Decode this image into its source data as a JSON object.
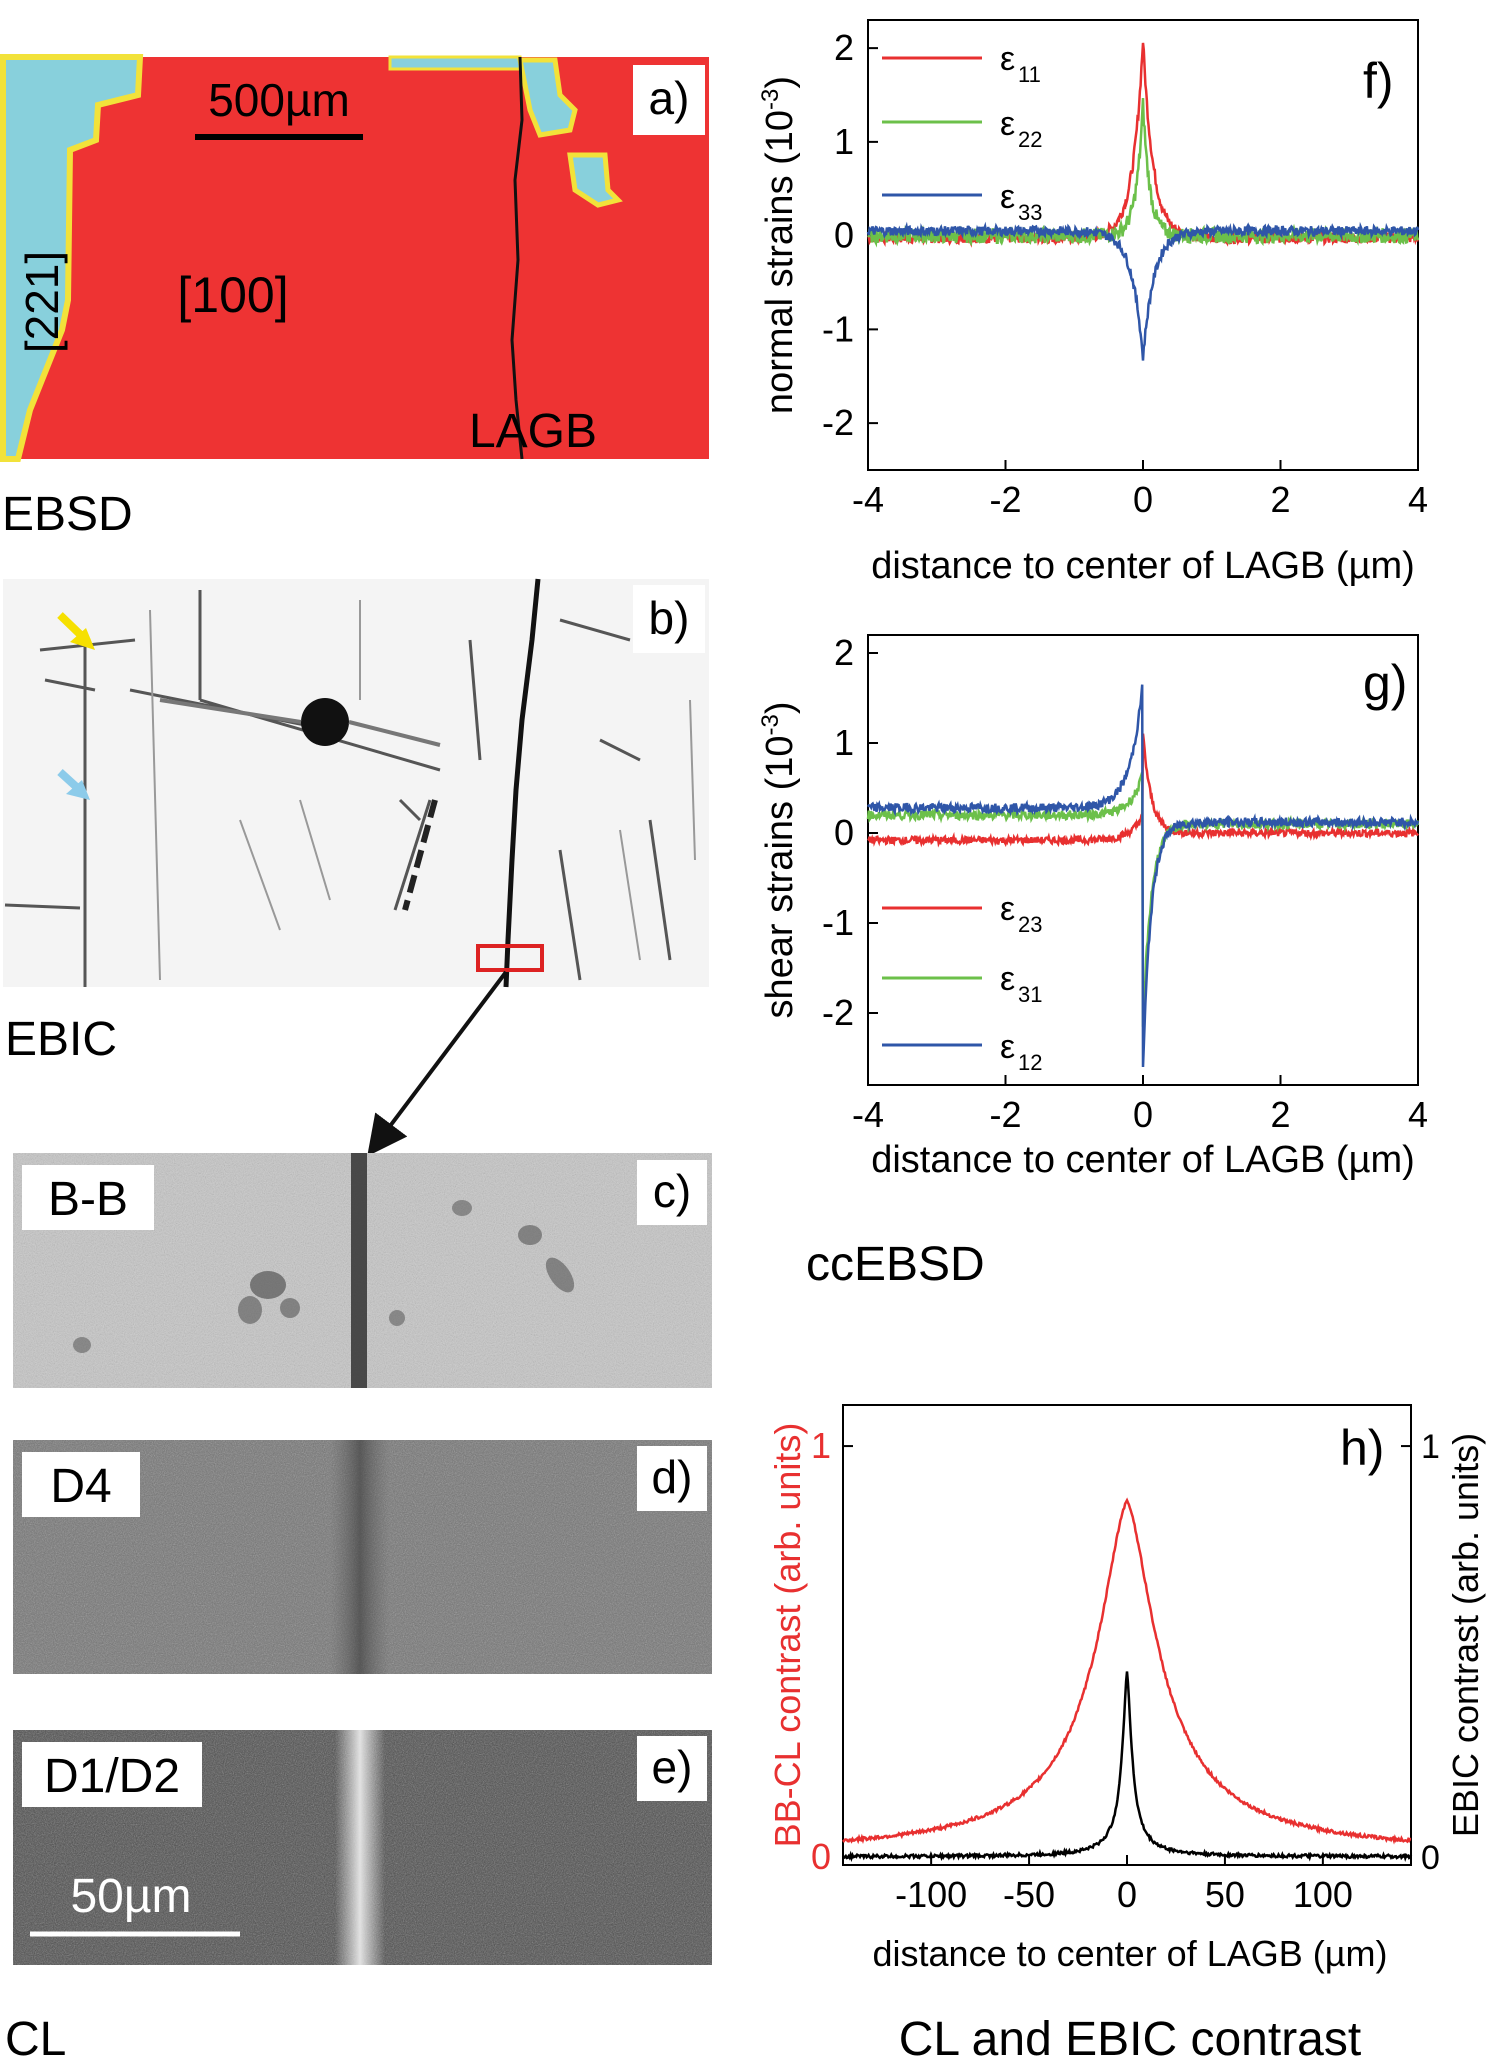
{
  "left_panels": {
    "a": {
      "tag": "a)",
      "scalebar": "500µm",
      "orientation_1": "[221]",
      "orientation_2": "[100]",
      "boundary": "LAGB",
      "caption": "EBSD",
      "colors": {
        "grain_100": "#ee3333",
        "grain_221": "#88d0dc",
        "boundary_outline": "#f2e23a"
      }
    },
    "b": {
      "tag": "b)",
      "caption": "EBIC",
      "arrow_colors": {
        "yellow": "#f6e000",
        "blue": "#8ccbea"
      },
      "roi_color": "#dd2222"
    },
    "c": {
      "tag": "c)",
      "label": "B-B"
    },
    "d": {
      "tag": "d)",
      "label": "D4"
    },
    "e": {
      "tag": "e)",
      "label": "D1/D2",
      "scalebar": "50µm"
    },
    "cl_caption": "CL"
  },
  "chart_data": [
    {
      "id": "f",
      "type": "line",
      "tag": "f)",
      "ylabel": "normal strains (10",
      "ylabel_exp": "-3",
      "ylabel_close": ")",
      "xlabel": "distance to center of LAGB (µm)",
      "xlim": [
        -4,
        4
      ],
      "ylim": [
        -2.5,
        2.3
      ],
      "xticks": [
        "-4",
        "-2",
        "0",
        "2",
        "4"
      ],
      "xtick_values": [
        -4,
        -2,
        0,
        2,
        4
      ],
      "yticks": [
        "-2",
        "-1",
        "0",
        "1",
        "2"
      ],
      "ytick_values": [
        -2,
        -1,
        0,
        1,
        2
      ],
      "series": [
        {
          "name": "ε",
          "sub": "11",
          "color": "#e83030",
          "peak": 2.1,
          "width": 0.15,
          "base": -0.02,
          "noise": 0.06
        },
        {
          "name": "ε",
          "sub": "22",
          "color": "#6cc04a",
          "peak": 1.4,
          "width": 0.1,
          "base": 0.0,
          "noise": 0.08
        },
        {
          "name": "ε",
          "sub": "33",
          "color": "#2f56a8",
          "peak": -1.35,
          "width": 0.16,
          "base": 0.05,
          "noise": 0.05
        }
      ]
    },
    {
      "id": "g",
      "type": "line",
      "tag": "g)",
      "ylabel": "shear strains (10",
      "ylabel_exp": "-3",
      "ylabel_close": ")",
      "xlabel": "distance to center of LAGB (µm)",
      "xlim": [
        -4,
        4
      ],
      "ylim": [
        -2.8,
        2.2
      ],
      "xticks": [
        "-4",
        "-2",
        "0",
        "2",
        "4"
      ],
      "xtick_values": [
        -4,
        -2,
        0,
        2,
        4
      ],
      "yticks": [
        "-2",
        "-1",
        "0",
        "1",
        "2"
      ],
      "ytick_values": [
        -2,
        -1,
        0,
        1,
        2
      ],
      "series": [
        {
          "name": "ε",
          "sub": "23",
          "color": "#e83030",
          "left_base": -0.08,
          "right_base": 0.0,
          "peak_left": 0.2,
          "peak_right": 1.1,
          "noise": 0.04
        },
        {
          "name": "ε",
          "sub": "31",
          "color": "#6cc04a",
          "left_base": 0.2,
          "right_base": 0.1,
          "peak_left": 0.65,
          "peak_right": -2.15,
          "noise": 0.05
        },
        {
          "name": "ε",
          "sub": "12",
          "color": "#2f56a8",
          "left_base": 0.28,
          "right_base": 0.12,
          "peak_left": 1.7,
          "peak_right": -2.6,
          "noise": 0.05
        }
      ],
      "caption": "ccEBSD"
    },
    {
      "id": "h",
      "type": "line",
      "tag": "h)",
      "ylabel_left": "BB-CL contrast (arb. units)",
      "ylabel_right": "EBIC contrast (arb. units)",
      "xlabel": "distance to center of LAGB (µm)",
      "xlim": [
        -145,
        145
      ],
      "ylim_left": [
        -0.02,
        1.1
      ],
      "ylim_right": [
        -0.02,
        1.1
      ],
      "xticks": [
        "-100",
        "-50",
        "0",
        "50",
        "100"
      ],
      "xtick_values": [
        -100,
        -50,
        0,
        50,
        100
      ],
      "yticks_left": [
        "0",
        "1"
      ],
      "ytick_values_left": [
        0,
        1
      ],
      "yticks_right": [
        "0",
        "1"
      ],
      "ytick_values_right": [
        0,
        1
      ],
      "series": [
        {
          "name": "BB-CL",
          "color": "#e83030",
          "peak": 0.86,
          "width": 20,
          "base": 0.005
        },
        {
          "name": "EBIC",
          "color": "#000000",
          "peak": 0.45,
          "width": 3,
          "base": 0.0
        }
      ],
      "caption": "CL and EBIC contrast"
    }
  ]
}
